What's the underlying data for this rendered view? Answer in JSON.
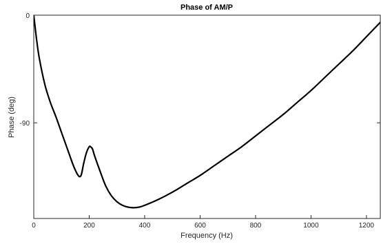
{
  "chart_data": {
    "type": "line",
    "title": "Phase of AM/P",
    "xlabel": "Frequency (Hz)",
    "ylabel": "Phase (deg)",
    "xlim": [
      0,
      1250
    ],
    "ylim": [
      -170,
      0
    ],
    "xticks": [
      0,
      200,
      400,
      600,
      800,
      1000,
      1200
    ],
    "xtick_labels": [
      "0",
      "200",
      "400",
      "600",
      "800",
      "1000",
      "1200"
    ],
    "yticks": [
      0,
      -90
    ],
    "ytick_labels": [
      "0",
      "-90"
    ],
    "grid": true,
    "legend": "none",
    "line_color": "#000000",
    "series": [
      {
        "x": [
          0,
          10,
          20,
          40,
          60,
          80,
          100,
          120,
          140,
          155,
          165,
          172,
          180,
          190,
          200,
          205,
          212,
          220,
          240,
          260,
          280,
          300,
          320,
          340,
          360,
          380,
          400,
          450,
          500,
          550,
          600,
          650,
          700,
          750,
          800,
          850,
          900,
          950,
          1000,
          1050,
          1100,
          1150,
          1200,
          1250
        ],
        "y": [
          0,
          -20,
          -36,
          -58,
          -73,
          -85,
          -98,
          -111,
          -124,
          -132,
          -135,
          -133,
          -124,
          -115,
          -110,
          -110,
          -112,
          -118,
          -131,
          -143,
          -151,
          -156,
          -159,
          -160.5,
          -161,
          -160.5,
          -159,
          -154,
          -148,
          -141,
          -134,
          -126,
          -118,
          -110,
          -101,
          -92,
          -83,
          -73,
          -63,
          -52,
          -41,
          -30,
          -18,
          -6
        ]
      }
    ]
  }
}
